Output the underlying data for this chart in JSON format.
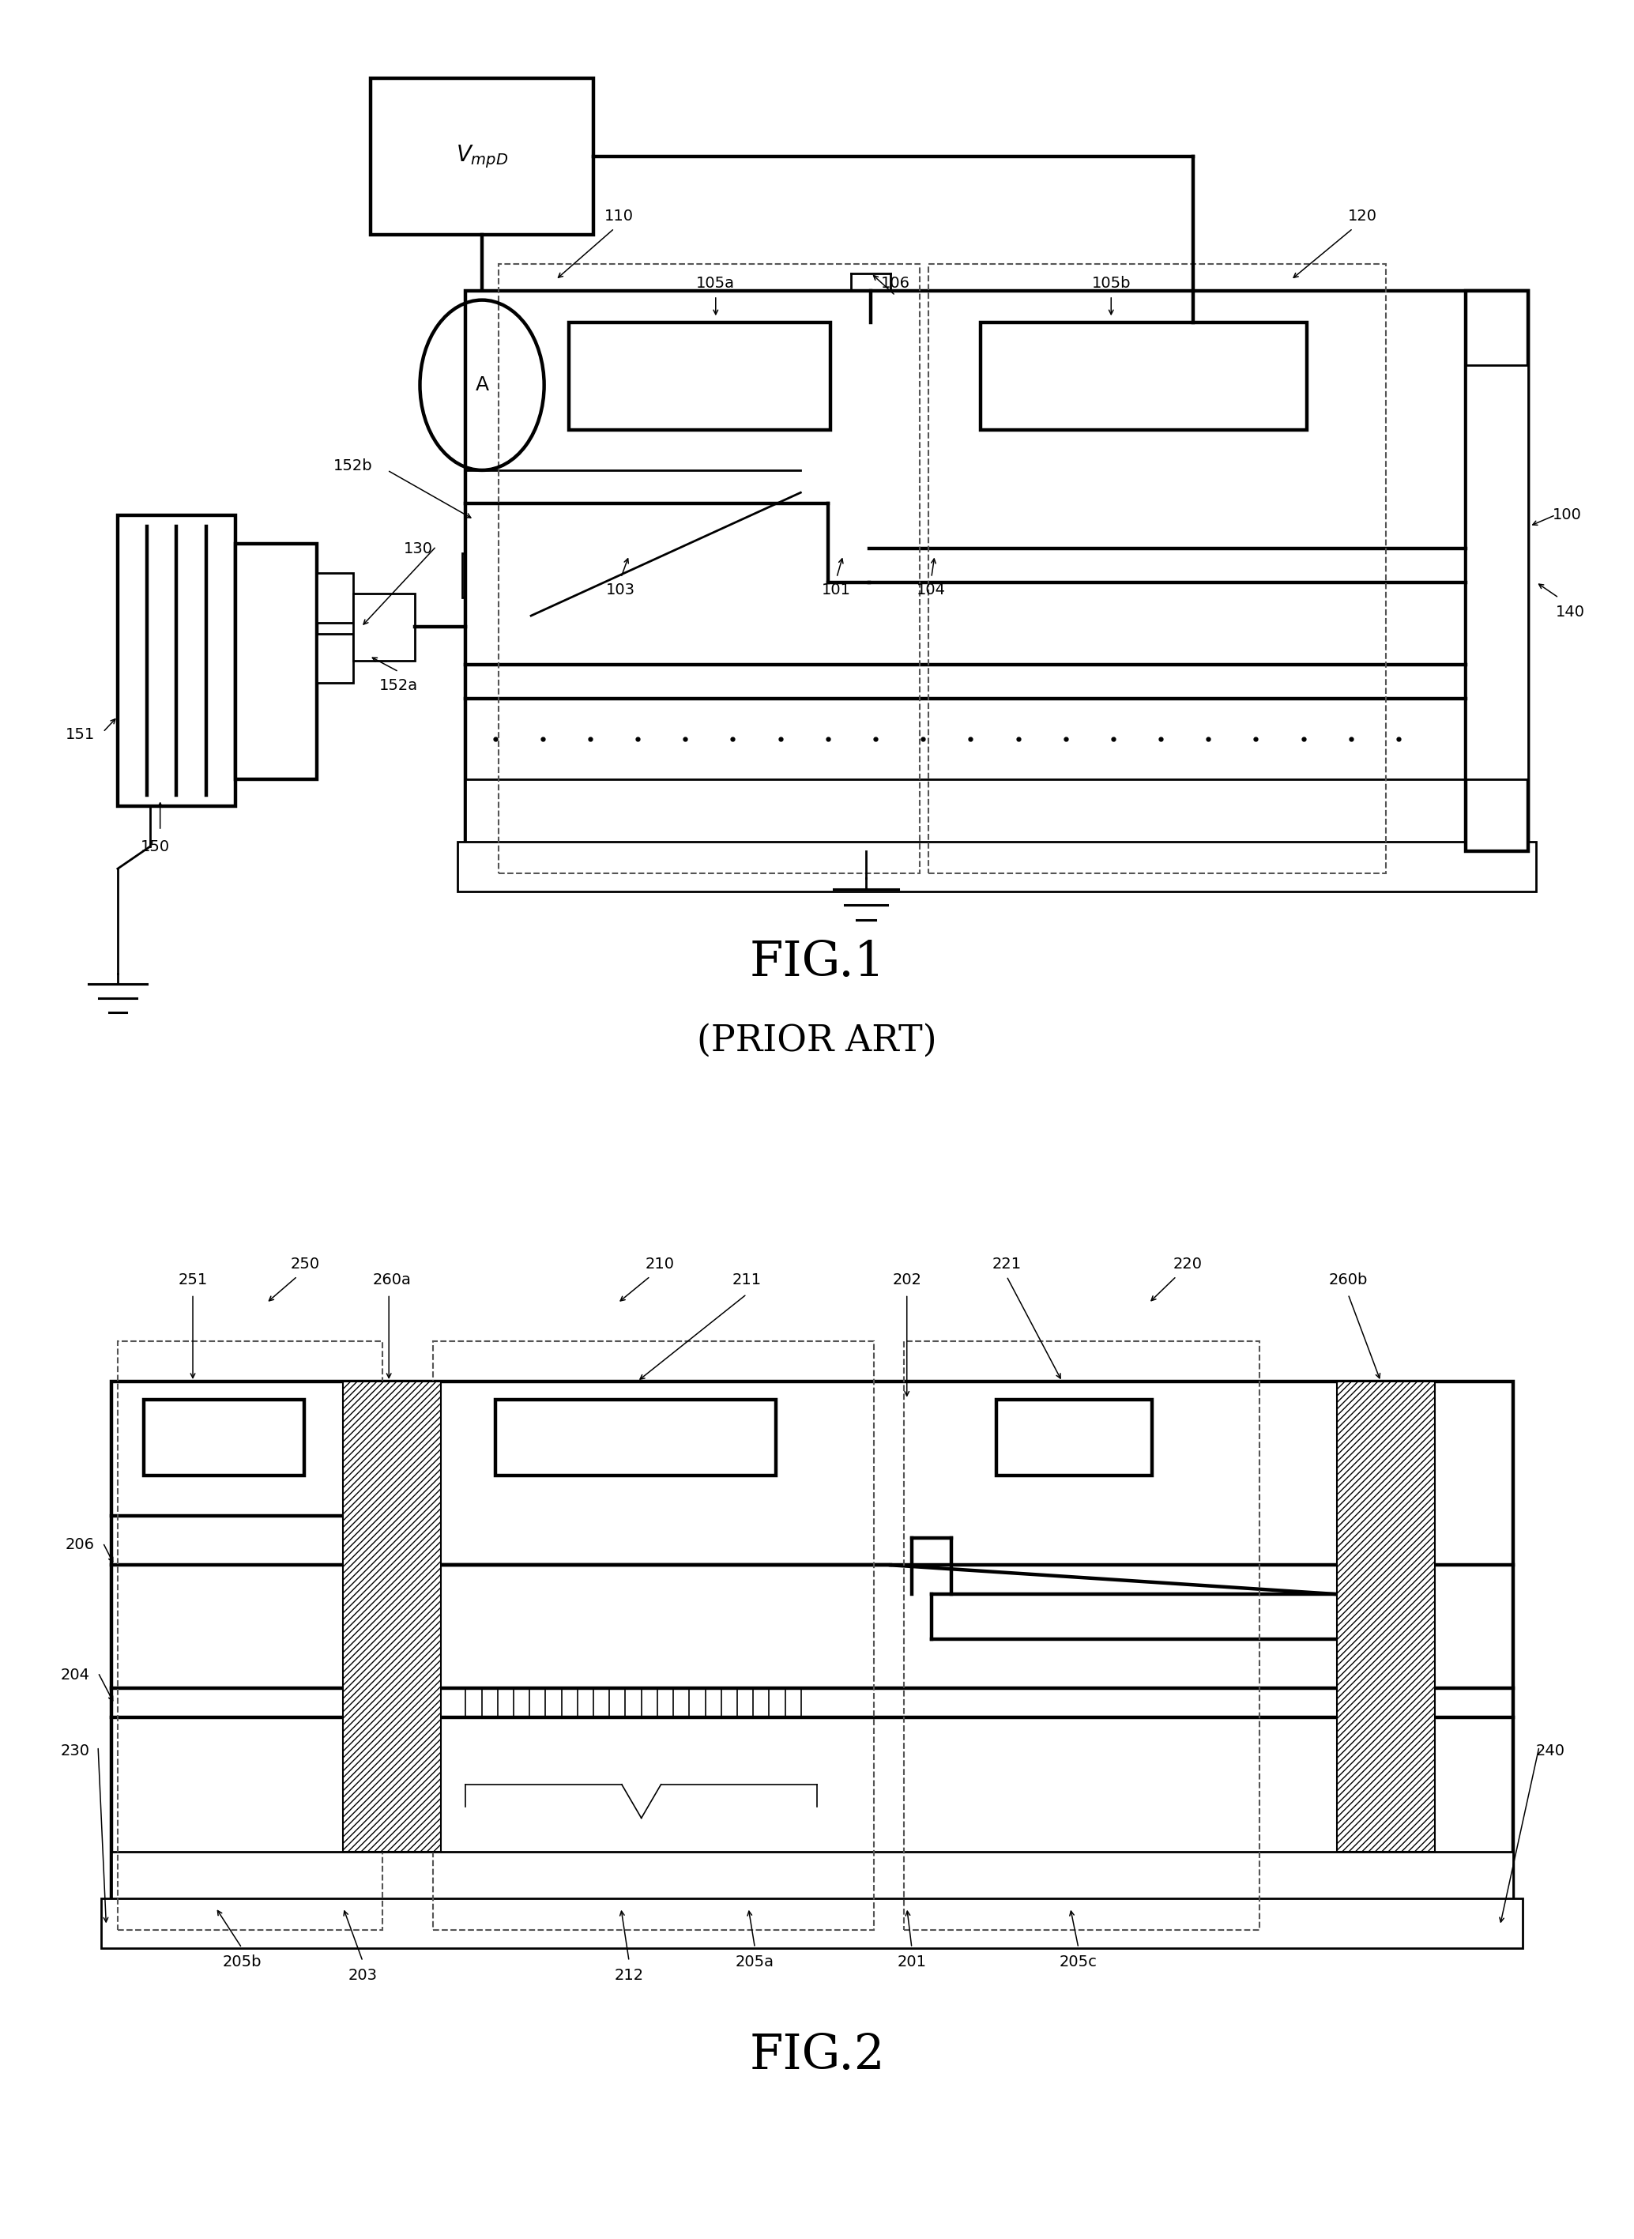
{
  "fig_width": 20.68,
  "fig_height": 28.33,
  "bg_color": "#ffffff",
  "line_color": "#000000",
  "lw_main": 2.0,
  "lw_thin": 1.2,
  "lw_thick": 3.2,
  "fig1_title": "FIG.1",
  "fig1_subtitle": "(PRIOR ART)",
  "fig2_title": "FIG.2",
  "fs_label": 14,
  "fs_title": 44
}
